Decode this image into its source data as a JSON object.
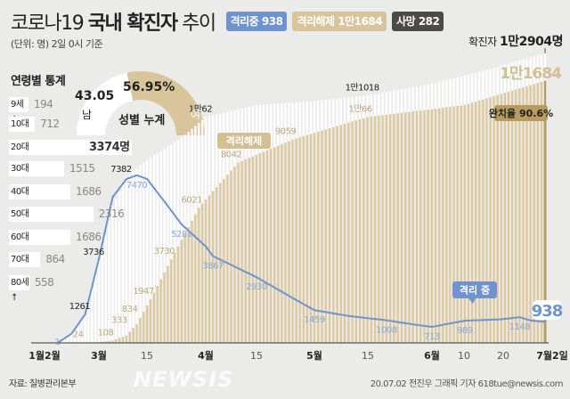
{
  "header": {
    "title_light": "코로나19",
    "title_bold": "국내 확진자",
    "title_tail": "추이",
    "subtitle": "(단위: 명) 2일 0시 기준",
    "badges": [
      {
        "label": "격리중 938",
        "color": "#6f93cf"
      },
      {
        "label": "격리해제 1만1684",
        "color": "#d8c59c"
      },
      {
        "label": "사망 282",
        "color": "#4d4b48"
      }
    ],
    "total_label": "확진자",
    "total_value": "1만2904명"
  },
  "age_stats": {
    "title": "연령별 통계",
    "items": [
      {
        "label": "9세↓",
        "value": "194",
        "count": 194
      },
      {
        "label": "10대",
        "value": "712",
        "count": 712
      },
      {
        "label": "20대",
        "value": "3374명",
        "count": 3374
      },
      {
        "label": "30대",
        "value": "1515",
        "count": 1515
      },
      {
        "label": "40대",
        "value": "1686",
        "count": 1686
      },
      {
        "label": "50대",
        "value": "2316",
        "count": 2316
      },
      {
        "label": "60대",
        "value": "1686",
        "count": 1686
      },
      {
        "label": "70대",
        "value": "864",
        "count": 864
      },
      {
        "label": "80세↑",
        "value": "558",
        "count": 558
      }
    ]
  },
  "gender": {
    "title": "성별 누계",
    "male_label": "남",
    "male_value": "43.05",
    "male_pct": 43.05,
    "female_label": "여",
    "female_value": "56.95%",
    "female_pct": 56.95,
    "male_color": "#ffffff",
    "female_color": "#d8c59c"
  },
  "chart_data": {
    "type": "bar+line",
    "title": "코로나19 국내 확진자 추이",
    "unit": "명",
    "x_ticks": [
      "1월2월",
      "3월",
      "15",
      "4월",
      "15",
      "5월",
      "15",
      "6월",
      "10",
      "20",
      "7월2일"
    ],
    "series": [
      {
        "name": "확진자",
        "type": "bar",
        "color": "#ffffff",
        "points": [
          [
            "02-18",
            31
          ],
          [
            "02-23",
            602
          ],
          [
            "02-26",
            1261
          ],
          [
            "02-29",
            3150
          ],
          [
            "03-02",
            4212
          ],
          [
            "03-05",
            6088
          ],
          [
            "03-09",
            7382
          ],
          [
            "03-15",
            8162
          ],
          [
            "03-25",
            9137
          ],
          [
            "04-01",
            10062
          ],
          [
            "04-15",
            10591
          ],
          [
            "05-01",
            10774
          ],
          [
            "05-15",
            11018
          ],
          [
            "06-01",
            11541
          ],
          [
            "06-15",
            12121
          ],
          [
            "07-02",
            12904
          ]
        ]
      },
      {
        "name": "격리해제",
        "type": "bar",
        "color": "#dcc9a0",
        "points": [
          [
            "02-18",
            16
          ],
          [
            "02-26",
            24
          ],
          [
            "03-01",
            30
          ],
          [
            "03-05",
            108
          ],
          [
            "03-09",
            333
          ],
          [
            "03-12",
            834
          ],
          [
            "03-16",
            1947
          ],
          [
            "03-22",
            3730
          ],
          [
            "03-30",
            6021
          ],
          [
            "04-10",
            8042
          ],
          [
            "04-25",
            9059
          ],
          [
            "05-15",
            10066
          ],
          [
            "06-10",
            10600
          ],
          [
            "07-02",
            11684
          ]
        ]
      },
      {
        "name": "격리 중",
        "type": "line",
        "color": "#6f93cf",
        "points": [
          [
            "02-18",
            1
          ],
          [
            "02-22",
            400
          ],
          [
            "02-26",
            1261
          ],
          [
            "03-01",
            3736
          ],
          [
            "03-05",
            6500
          ],
          [
            "03-09",
            7300
          ],
          [
            "03-12",
            7470
          ],
          [
            "03-15",
            7300
          ],
          [
            "03-20",
            6300
          ],
          [
            "03-25",
            5281
          ],
          [
            "04-01",
            4300
          ],
          [
            "04-03",
            3867
          ],
          [
            "04-15",
            2930
          ],
          [
            "04-25",
            2000
          ],
          [
            "05-01",
            1459
          ],
          [
            "05-10",
            1200
          ],
          [
            "05-20",
            1008
          ],
          [
            "05-28",
            800
          ],
          [
            "06-01",
            713
          ],
          [
            "06-10",
            989
          ],
          [
            "06-20",
            1050
          ],
          [
            "06-25",
            1148
          ],
          [
            "06-28",
            1000
          ],
          [
            "07-02",
            938
          ]
        ]
      }
    ],
    "labels": {
      "confirmed": [
        {
          "date": "02-26",
          "text": "1261"
        },
        {
          "date": "03-01",
          "text": "3736"
        },
        {
          "date": "03-09",
          "text": "7382"
        },
        {
          "date": "04-01",
          "text": "1만62"
        },
        {
          "date": "05-15",
          "text": "1만1018"
        }
      ],
      "released": [
        {
          "date": "02-26",
          "text": "24"
        },
        {
          "date": "03-05",
          "text": "108"
        },
        {
          "date": "03-09",
          "text": "333"
        },
        {
          "date": "03-12",
          "text": "834"
        },
        {
          "date": "03-16",
          "text": "1947"
        },
        {
          "date": "03-22",
          "text": "3730"
        },
        {
          "date": "03-30",
          "text": "6021"
        },
        {
          "date": "04-10",
          "text": "8042"
        },
        {
          "date": "04-25",
          "text": "9059"
        },
        {
          "date": "05-15",
          "text": "1만66"
        }
      ],
      "isolation": [
        {
          "date": "02-18",
          "text": "1"
        },
        {
          "date": "03-12",
          "text": "7470"
        },
        {
          "date": "03-25",
          "text": "5281"
        },
        {
          "date": "04-03",
          "text": "3867"
        },
        {
          "date": "04-15",
          "text": "2930"
        },
        {
          "date": "05-01",
          "text": "1459"
        },
        {
          "date": "05-20",
          "text": "1008"
        },
        {
          "date": "06-01",
          "text": "713"
        },
        {
          "date": "06-10",
          "text": "989"
        },
        {
          "date": "06-25",
          "text": "1148"
        }
      ]
    },
    "released_badge": "격리해제",
    "isolation_badge": "격리 중",
    "released_final": "1만1684",
    "isolation_final": "938",
    "recovery_rate": "완치율 90.6%"
  },
  "footer": {
    "source": "자료: 질병관리본부",
    "credit": "20.07.02 전진우 그래픽 기자 618tue@newsis.com",
    "watermark": "NEWSIS"
  }
}
